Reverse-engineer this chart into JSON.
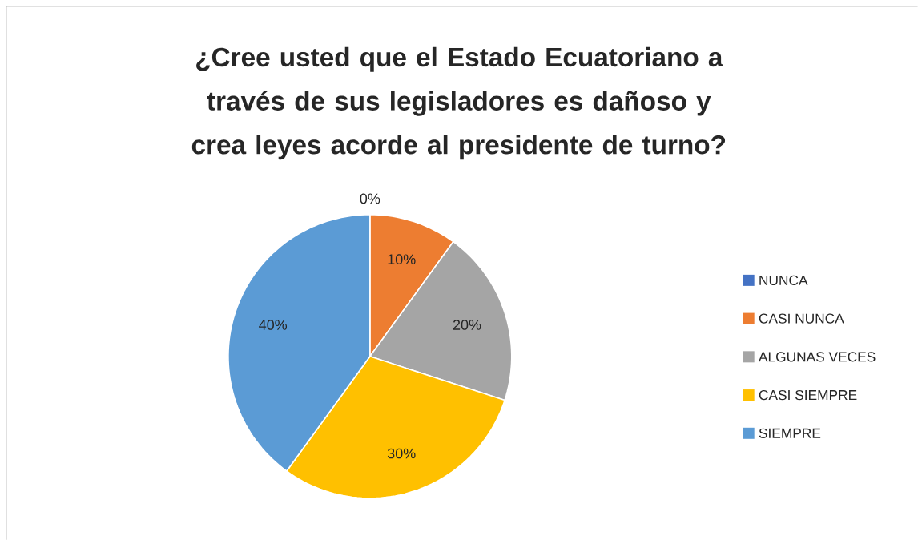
{
  "chart_data": {
    "type": "pie",
    "title": "¿Cree usted que el Estado Ecuatoriano a través de sus legisladores es dañoso y crea leyes acorde al presidente de turno?",
    "categories": [
      "NUNCA",
      "CASI NUNCA",
      "ALGUNAS VECES",
      "CASI SIEMPRE",
      "SIEMPRE"
    ],
    "values": [
      0,
      10,
      20,
      30,
      40
    ],
    "colors": [
      "#4472c4",
      "#ed7d31",
      "#a5a5a5",
      "#ffc000",
      "#5b9bd5"
    ],
    "value_labels": [
      "0%",
      "10%",
      "20%",
      "30%",
      "40%"
    ],
    "legend": "right"
  }
}
